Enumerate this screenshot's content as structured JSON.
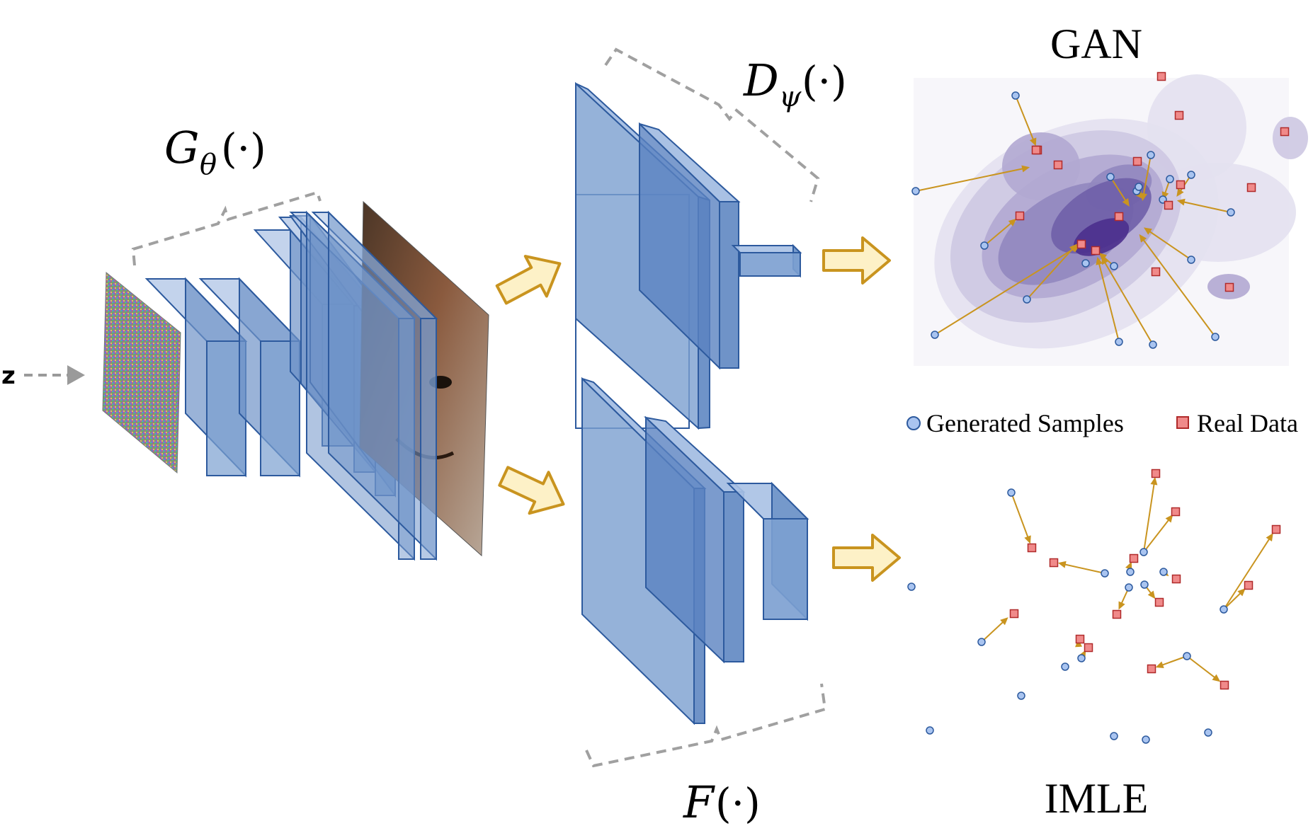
{
  "title": "",
  "input_label": "z",
  "generator": {
    "label_base": "G",
    "label_sub": "θ",
    "label_arg": "(·)"
  },
  "discriminator": {
    "label_base": "D",
    "label_sub": "ψ",
    "label_arg": "(·)"
  },
  "feature_extractor": {
    "label_base": "F",
    "label_arg": "(·)"
  },
  "gan_panel": {
    "title": "GAN"
  },
  "imle_panel": {
    "title": "IMLE"
  },
  "legend": {
    "generated_label": "Generated Samples",
    "real_label": "Real Data"
  },
  "colors": {
    "layer_fill": "#7b9fd0",
    "layer_stroke": "#2d5a9e",
    "arrow_fill": "#fdf1c7",
    "arrow_stroke": "#c9941f",
    "bracket": "#a0a0a0",
    "generated_point": "#a9c4f0",
    "real_point": "#f08a8a",
    "link": "#c9941f",
    "density_levels": [
      "#f3f2f8",
      "#e3e1ef",
      "#cdc8e2",
      "#b1a9d1",
      "#9187bf",
      "#6f5fa9",
      "#4b2f8d"
    ]
  }
}
